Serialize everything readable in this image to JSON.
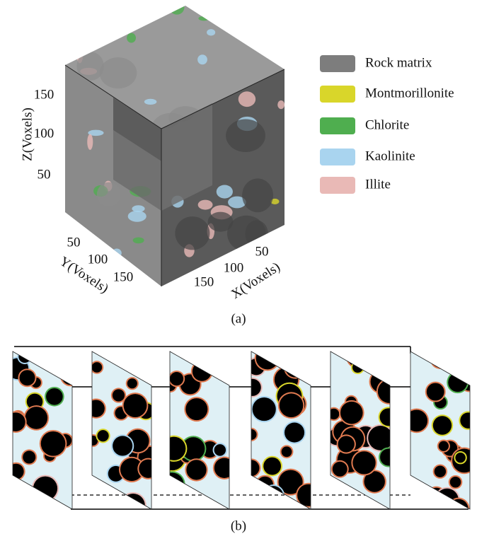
{
  "figure": {
    "panel_a": {
      "z_axis": {
        "label": "Z(Voxels)",
        "ticks": [
          50,
          100,
          150
        ]
      },
      "y_axis": {
        "label": "Y(Voxels)",
        "ticks": [
          50,
          100,
          150
        ]
      },
      "x_axis": {
        "label": "X(Voxels)",
        "ticks": [
          50,
          100,
          150
        ]
      },
      "legend": [
        {
          "label": "Rock matrix",
          "color": "#7d7d7d"
        },
        {
          "label": "Montmorillonite",
          "color": "#d9d62a"
        },
        {
          "label": "Chlorite",
          "color": "#4fae4f"
        },
        {
          "label": "Kaolinite",
          "color": "#a9d4ef"
        },
        {
          "label": "Illite",
          "color": "#e9b9b6"
        }
      ],
      "caption": "(a)"
    },
    "panel_b": {
      "caption": "(b)"
    }
  }
}
